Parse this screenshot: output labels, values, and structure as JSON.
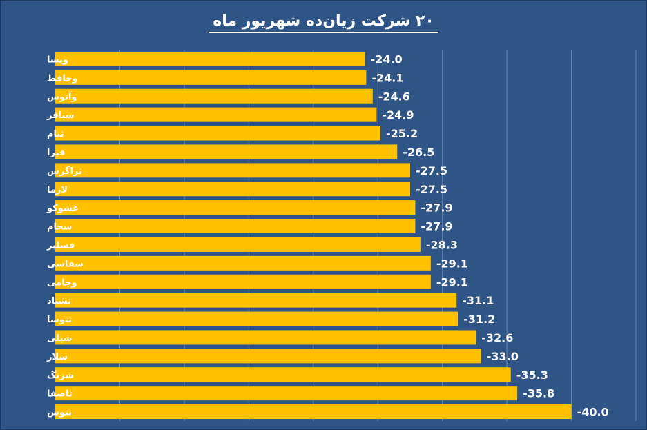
{
  "chart_data": {
    "type": "bar",
    "orientation": "horizontal",
    "title": "۲۰ شرکت زیان‌ده شهریور ماه",
    "categories": [
      "وپسا",
      "وحافظ",
      "وآتوس",
      "سباقر",
      "ثنام",
      "فیرا",
      "ثزاگرس",
      "لازما",
      "غشوکو",
      "سجام",
      "فسلیر",
      "سفاسی",
      "وجامی",
      "تشتاد",
      "ثتوسا",
      "شپلی",
      "سلار",
      "شزنگ",
      "ثاصفا",
      "نتوس"
    ],
    "values": [
      -24.0,
      -24.1,
      -24.6,
      -24.9,
      -25.2,
      -26.5,
      -27.5,
      -27.5,
      -27.9,
      -27.9,
      -28.3,
      -29.1,
      -29.1,
      -31.1,
      -31.2,
      -32.6,
      -33.0,
      -35.3,
      -35.8,
      -40.0
    ],
    "value_labels": [
      "-24.0",
      "-24.1",
      "-24.6",
      "-24.9",
      "-25.2",
      "-26.5",
      "-27.5",
      "-27.5",
      "-27.9",
      "-27.9",
      "-28.3",
      "-29.1",
      "-29.1",
      "-31.1",
      "-31.2",
      "-32.6",
      "-33.0",
      "-35.3",
      "-35.8",
      "-40.0"
    ],
    "xlim": [
      0,
      -45
    ],
    "grid": true,
    "legend": "none",
    "colors": {
      "bar": "#ffc000",
      "background": "#2e5586",
      "grid": "#6a87ab",
      "text": "#ffffff"
    }
  }
}
